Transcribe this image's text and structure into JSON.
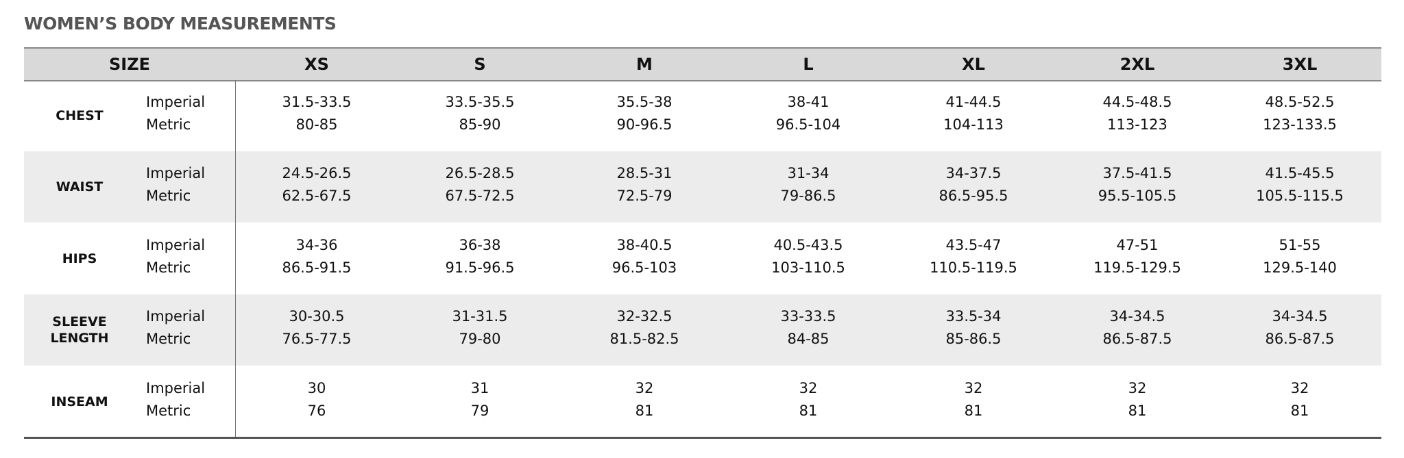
{
  "title": "WOMEN’S BODY MEASUREMENTS",
  "header": {
    "size_label": "SIZE",
    "sizes": [
      "XS",
      "S",
      "M",
      "L",
      "XL",
      "2XL",
      "3XL"
    ]
  },
  "rows": [
    {
      "label": "CHEST",
      "units": [
        "Imperial",
        "Metric"
      ],
      "values": [
        [
          "31.5-33.5",
          "80-85"
        ],
        [
          "33.5-35.5",
          "85-90"
        ],
        [
          "35.5-38",
          "90-96.5"
        ],
        [
          "38-41",
          "96.5-104"
        ],
        [
          "41-44.5",
          "104-113"
        ],
        [
          "44.5-48.5",
          "113-123"
        ],
        [
          "48.5-52.5",
          "123-133.5"
        ]
      ]
    },
    {
      "label": "WAIST",
      "units": [
        "Imperial",
        "Metric"
      ],
      "values": [
        [
          "24.5-26.5",
          "62.5-67.5"
        ],
        [
          "26.5-28.5",
          "67.5-72.5"
        ],
        [
          "28.5-31",
          "72.5-79"
        ],
        [
          "31-34",
          "79-86.5"
        ],
        [
          "34-37.5",
          "86.5-95.5"
        ],
        [
          "37.5-41.5",
          "95.5-105.5"
        ],
        [
          "41.5-45.5",
          "105.5-115.5"
        ]
      ]
    },
    {
      "label": "HIPS",
      "units": [
        "Imperial",
        "Metric"
      ],
      "values": [
        [
          "34-36",
          "86.5-91.5"
        ],
        [
          "36-38",
          "91.5-96.5"
        ],
        [
          "38-40.5",
          "96.5-103"
        ],
        [
          "40.5-43.5",
          "103-110.5"
        ],
        [
          "43.5-47",
          "110.5-119.5"
        ],
        [
          "47-51",
          "119.5-129.5"
        ],
        [
          "51-55",
          "129.5-140"
        ]
      ]
    },
    {
      "label": "SLEEVE LENGTH",
      "units": [
        "Imperial",
        "Metric"
      ],
      "values": [
        [
          "30-30.5",
          "76.5-77.5"
        ],
        [
          "31-31.5",
          "79-80"
        ],
        [
          "32-32.5",
          "81.5-82.5"
        ],
        [
          "33-33.5",
          "84-85"
        ],
        [
          "33.5-34",
          "85-86.5"
        ],
        [
          "34-34.5",
          "86.5-87.5"
        ],
        [
          "34-34.5",
          "86.5-87.5"
        ]
      ]
    },
    {
      "label": "INSEAM",
      "units": [
        "Imperial",
        "Metric"
      ],
      "values": [
        [
          "30",
          "76"
        ],
        [
          "31",
          "79"
        ],
        [
          "32",
          "81"
        ],
        [
          "32",
          "81"
        ],
        [
          "32",
          "81"
        ],
        [
          "32",
          "81"
        ],
        [
          "32",
          "81"
        ]
      ]
    }
  ]
}
